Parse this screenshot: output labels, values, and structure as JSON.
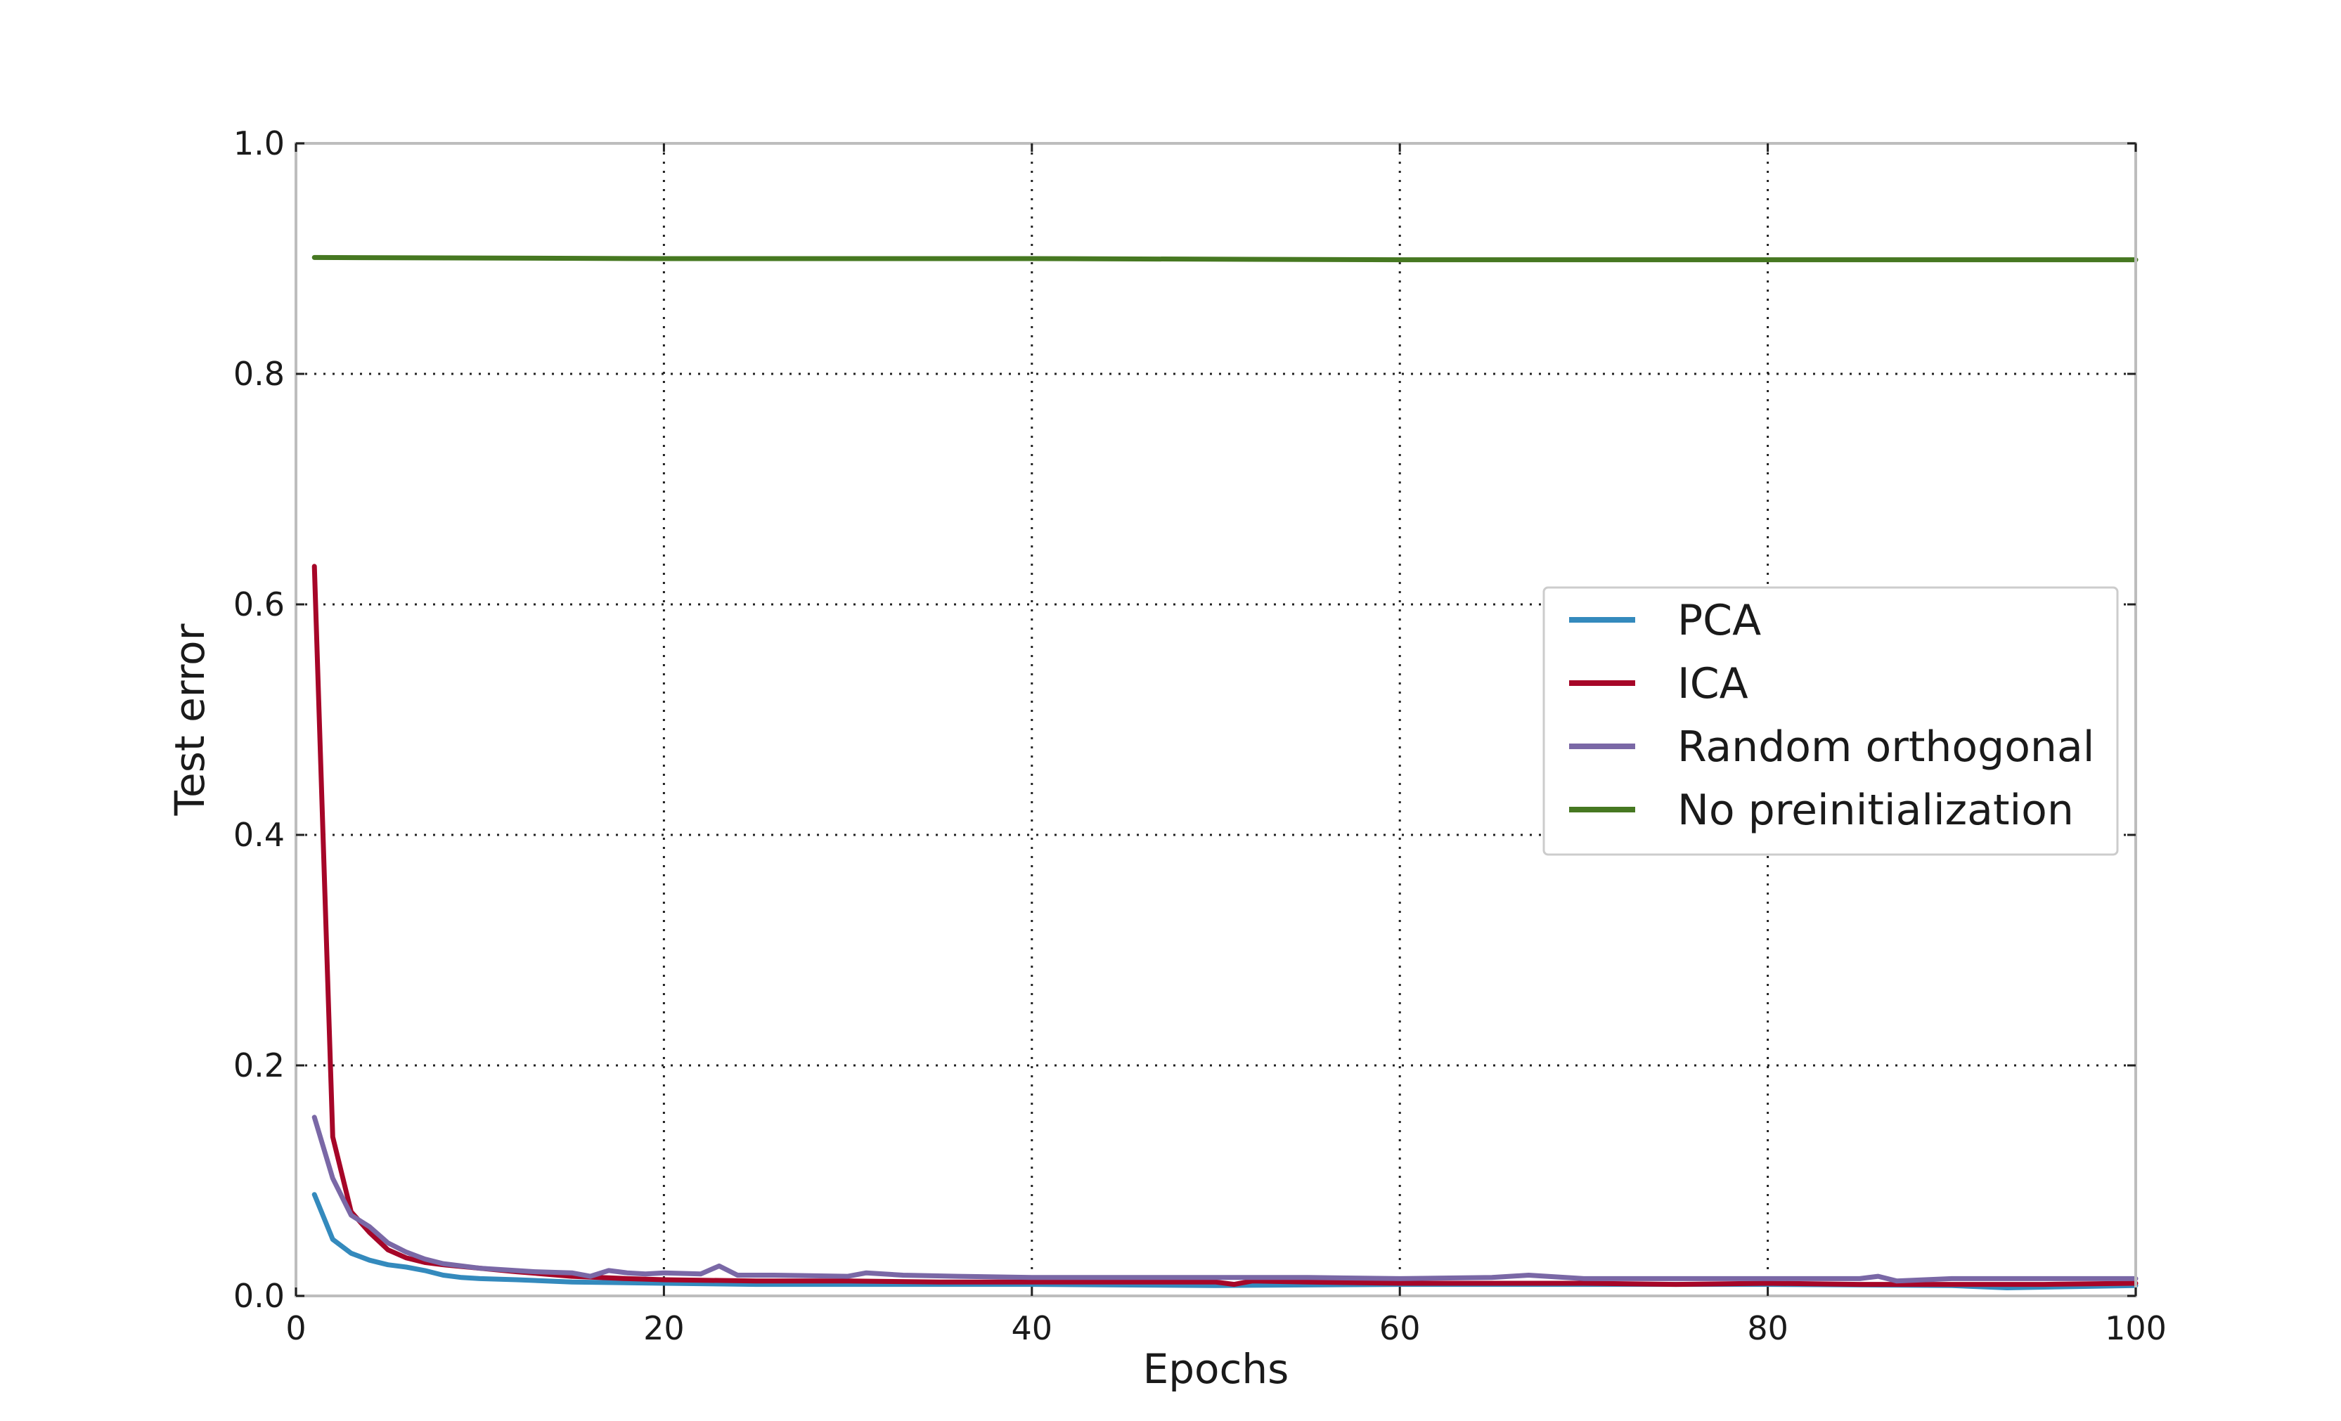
{
  "chart_data": {
    "type": "line",
    "xlabel": "Epochs",
    "ylabel": "Test error",
    "xlim": [
      0,
      100
    ],
    "ylim": [
      0.0,
      1.0
    ],
    "xticks": [
      "0",
      "20",
      "40",
      "60",
      "80",
      "100"
    ],
    "yticks": [
      "0.0",
      "0.2",
      "0.4",
      "0.6",
      "0.8",
      "1.0"
    ],
    "grid": true,
    "legend_position": "center-right",
    "series": [
      {
        "name": "PCA",
        "color": "#348ABD",
        "x": [
          1,
          2,
          3,
          4,
          5,
          6,
          7,
          8,
          9,
          10,
          12,
          15,
          20,
          25,
          30,
          40,
          50,
          60,
          70,
          80,
          90,
          93,
          100
        ],
        "y": [
          0.088,
          0.049,
          0.037,
          0.031,
          0.027,
          0.025,
          0.022,
          0.018,
          0.016,
          0.015,
          0.014,
          0.012,
          0.011,
          0.01,
          0.01,
          0.01,
          0.009,
          0.01,
          0.01,
          0.01,
          0.009,
          0.007,
          0.009
        ]
      },
      {
        "name": "ICA",
        "color": "#A60628",
        "x": [
          1,
          2,
          3,
          4,
          5,
          6,
          7,
          8,
          10,
          12,
          15,
          18,
          20,
          25,
          30,
          35,
          40,
          45,
          50,
          51,
          52,
          55,
          60,
          65,
          70,
          75,
          80,
          85,
          90,
          95,
          100
        ],
        "y": [
          0.633,
          0.138,
          0.073,
          0.055,
          0.04,
          0.033,
          0.029,
          0.027,
          0.024,
          0.021,
          0.017,
          0.015,
          0.014,
          0.013,
          0.013,
          0.012,
          0.012,
          0.012,
          0.012,
          0.01,
          0.013,
          0.012,
          0.011,
          0.011,
          0.011,
          0.01,
          0.011,
          0.01,
          0.01,
          0.01,
          0.011
        ]
      },
      {
        "name": "Random orthogonal",
        "color": "#7A68A6",
        "x": [
          1,
          2,
          3,
          4,
          5,
          6,
          7,
          8,
          10,
          13,
          15,
          16,
          17,
          18,
          19,
          20,
          22,
          23,
          24,
          26,
          30,
          31,
          33,
          36,
          40,
          45,
          50,
          55,
          60,
          65,
          67,
          70,
          75,
          80,
          85,
          86,
          87,
          90,
          95,
          100
        ],
        "y": [
          0.155,
          0.102,
          0.07,
          0.06,
          0.046,
          0.038,
          0.032,
          0.028,
          0.024,
          0.021,
          0.02,
          0.017,
          0.022,
          0.02,
          0.019,
          0.02,
          0.019,
          0.026,
          0.018,
          0.018,
          0.017,
          0.02,
          0.018,
          0.017,
          0.016,
          0.016,
          0.016,
          0.016,
          0.015,
          0.016,
          0.018,
          0.015,
          0.015,
          0.015,
          0.015,
          0.017,
          0.013,
          0.015,
          0.015,
          0.015
        ]
      },
      {
        "name": "No preinitialization",
        "color": "#467821",
        "x": [
          1,
          20,
          40,
          60,
          80,
          100
        ],
        "y": [
          0.901,
          0.9,
          0.9,
          0.899,
          0.899,
          0.899
        ]
      }
    ]
  }
}
